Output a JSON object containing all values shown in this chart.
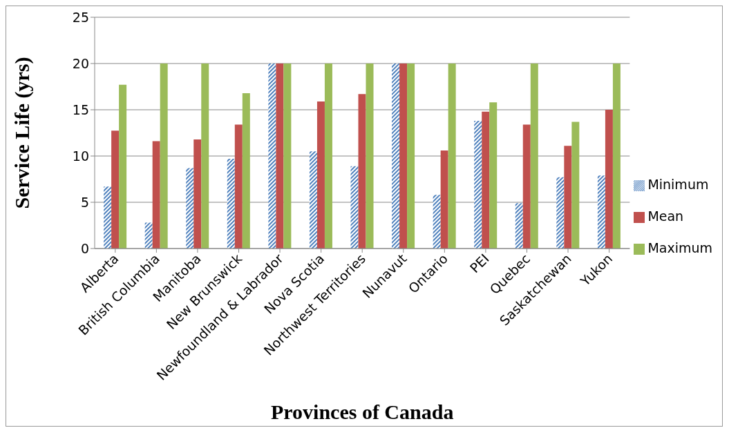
{
  "chart_data": {
    "type": "bar",
    "xlabel": "Provinces of Canada",
    "ylabel": "Service Life (yrs)",
    "categories": [
      "Alberta",
      "British Columbia",
      "Manitoba",
      "New Brunswick",
      "Newfoundland & Labrador",
      "Nova Scotia",
      "Northwest Territories",
      "Nunavut",
      "Ontario",
      "PEI",
      "Quebec",
      "Saskatchewan",
      "Yukon"
    ],
    "series": [
      {
        "name": "Minimum",
        "color": "#8eb4e3",
        "values": [
          6.7,
          2.8,
          8.7,
          9.7,
          20,
          10.5,
          8.9,
          20,
          5.8,
          13.8,
          4.9,
          7.7,
          7.9
        ]
      },
      {
        "name": "Mean",
        "color": "#c0504d",
        "values": [
          12.75,
          11.6,
          11.8,
          13.4,
          20,
          15.9,
          16.7,
          20,
          10.6,
          14.8,
          13.4,
          11.1,
          15.0
        ]
      },
      {
        "name": "Maximum",
        "color": "#9bbb59",
        "values": [
          17.7,
          20,
          20,
          16.8,
          20,
          20,
          20,
          20,
          20,
          15.8,
          20,
          13.7,
          20
        ]
      }
    ],
    "ylim": [
      0,
      25
    ],
    "yticks": [
      0,
      5,
      10,
      15,
      20,
      25
    ],
    "grid": "y",
    "legend": "right"
  }
}
